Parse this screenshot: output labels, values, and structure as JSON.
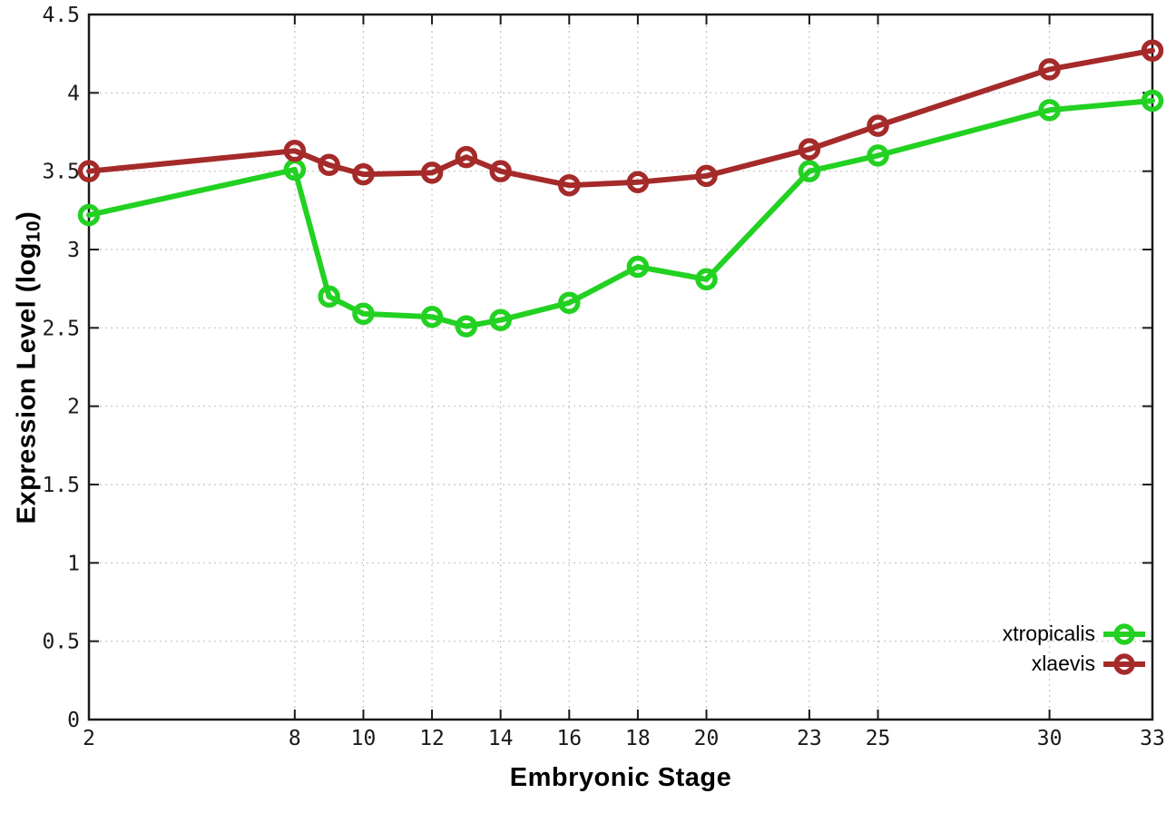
{
  "page": {
    "background": "#ffffff"
  },
  "chart_data": {
    "type": "line",
    "title": "",
    "xlabel": "Embryonic Stage",
    "ylabel_prefix": "Expression Level (log",
    "ylabel_sub": "10",
    "ylabel_suffix": ")",
    "xlim": [
      2,
      33
    ],
    "ylim": [
      0,
      4.5
    ],
    "grid": true,
    "legend_position": "bottom-right-inside",
    "axis_color": "#1a1a1a",
    "grid_color": "#c4c4c4",
    "tick_label_color": "#1a1a1a",
    "x_ticks": [
      2,
      8,
      10,
      12,
      14,
      16,
      18,
      20,
      23,
      25,
      30,
      33
    ],
    "x_tick_labels": [
      "2",
      "8",
      "10",
      "12",
      "14",
      "16",
      "18",
      "20",
      "23",
      "25",
      "30",
      "33"
    ],
    "y_ticks": [
      0,
      0.5,
      1,
      1.5,
      2,
      2.5,
      3,
      3.5,
      4,
      4.5
    ],
    "y_tick_labels": [
      "0",
      "0.5",
      "1",
      "1.5",
      "2",
      "2.5",
      "3",
      "3.5",
      "4",
      "4.5"
    ],
    "x": [
      2,
      8,
      9,
      10,
      12,
      13,
      14,
      16,
      18,
      20,
      23,
      25,
      30,
      33
    ],
    "series": [
      {
        "name": "xtropicalis",
        "color": "#22d122",
        "values": [
          3.22,
          3.51,
          2.7,
          2.59,
          2.57,
          2.51,
          2.55,
          2.66,
          2.89,
          2.81,
          3.5,
          3.6,
          3.89,
          3.95
        ]
      },
      {
        "name": "xlaevis",
        "color": "#a52a2a",
        "values": [
          3.5,
          3.63,
          3.54,
          3.48,
          3.49,
          3.59,
          3.5,
          3.41,
          3.43,
          3.47,
          3.64,
          3.79,
          4.15,
          4.27
        ]
      }
    ]
  }
}
